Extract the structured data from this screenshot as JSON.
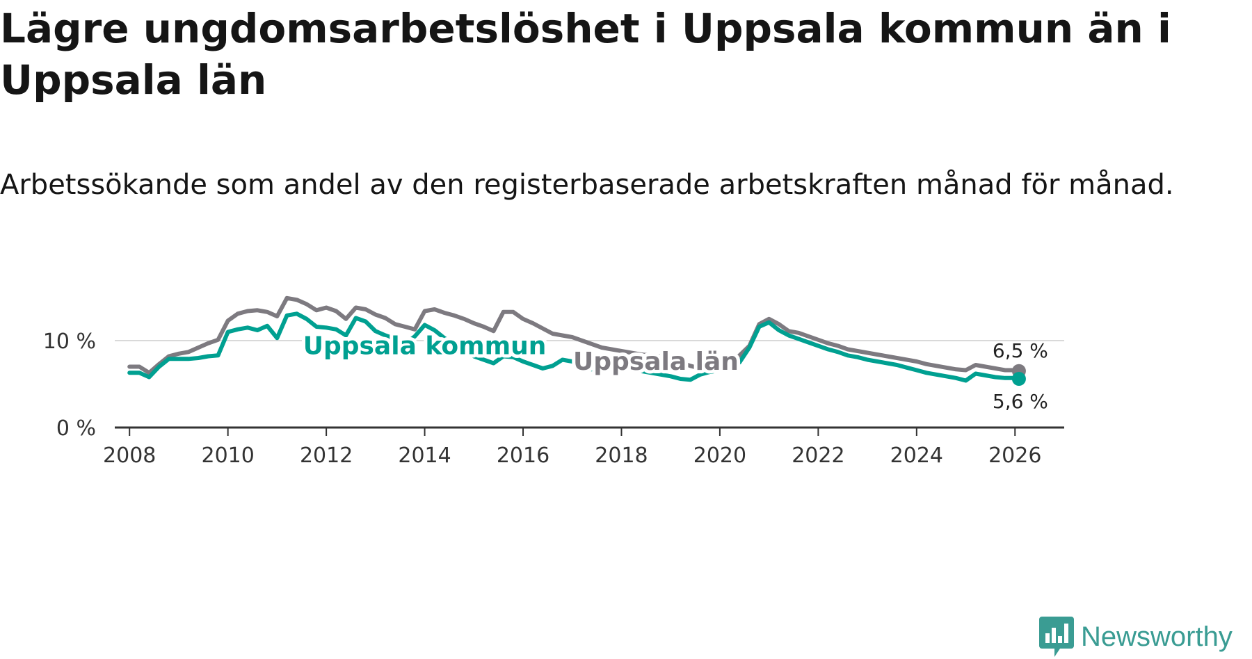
{
  "header": {
    "title": "Lägre ungdomsarbetslöshet i Uppsala kommun än i Uppsala län",
    "subtitle": "Arbetssökande som andel av den registerbaserade arbetskraften månad för månad."
  },
  "brand": {
    "name": "Newsworthy",
    "color": "#3a9c93"
  },
  "chart_data": {
    "type": "line",
    "unit": "%",
    "x_range": [
      2007.7,
      2027.0
    ],
    "ylim": [
      0,
      18
    ],
    "grid": true,
    "x_ticks": [
      2008,
      2010,
      2012,
      2014,
      2016,
      2018,
      2020,
      2022,
      2024,
      2026
    ],
    "x_tick_labels": [
      "2008",
      "2010",
      "2012",
      "2014",
      "2016",
      "2018",
      "2020",
      "2022",
      "2024",
      "2026"
    ],
    "y_ticks": [
      0,
      10
    ],
    "y_tick_labels": [
      "0 %",
      "10 %"
    ],
    "series": [
      {
        "name": "Uppsala län",
        "color": "#7d7a80",
        "end_label": "6,5 %",
        "points": [
          [
            2008.0,
            7.0
          ],
          [
            2008.2,
            7.0
          ],
          [
            2008.4,
            6.3
          ],
          [
            2008.6,
            7.3
          ],
          [
            2008.8,
            8.2
          ],
          [
            2009.0,
            8.5
          ],
          [
            2009.2,
            8.7
          ],
          [
            2009.4,
            9.2
          ],
          [
            2009.6,
            9.7
          ],
          [
            2009.8,
            10.1
          ],
          [
            2010.0,
            12.3
          ],
          [
            2010.2,
            13.1
          ],
          [
            2010.4,
            13.4
          ],
          [
            2010.6,
            13.5
          ],
          [
            2010.8,
            13.3
          ],
          [
            2011.0,
            12.8
          ],
          [
            2011.2,
            14.9
          ],
          [
            2011.4,
            14.7
          ],
          [
            2011.6,
            14.2
          ],
          [
            2011.8,
            13.5
          ],
          [
            2012.0,
            13.8
          ],
          [
            2012.2,
            13.4
          ],
          [
            2012.4,
            12.5
          ],
          [
            2012.6,
            13.8
          ],
          [
            2012.8,
            13.6
          ],
          [
            2013.0,
            13.0
          ],
          [
            2013.2,
            12.6
          ],
          [
            2013.4,
            11.9
          ],
          [
            2013.6,
            11.6
          ],
          [
            2013.8,
            11.3
          ],
          [
            2014.0,
            13.4
          ],
          [
            2014.2,
            13.6
          ],
          [
            2014.4,
            13.2
          ],
          [
            2014.6,
            12.9
          ],
          [
            2014.8,
            12.5
          ],
          [
            2015.0,
            12.0
          ],
          [
            2015.2,
            11.6
          ],
          [
            2015.4,
            11.1
          ],
          [
            2015.6,
            13.3
          ],
          [
            2015.8,
            13.3
          ],
          [
            2016.0,
            12.5
          ],
          [
            2016.2,
            12.0
          ],
          [
            2016.4,
            11.4
          ],
          [
            2016.6,
            10.8
          ],
          [
            2016.8,
            10.6
          ],
          [
            2017.0,
            10.4
          ],
          [
            2017.2,
            10.0
          ],
          [
            2017.4,
            9.6
          ],
          [
            2017.6,
            9.2
          ],
          [
            2017.8,
            9.0
          ],
          [
            2018.0,
            8.8
          ],
          [
            2018.2,
            8.6
          ],
          [
            2018.4,
            8.4
          ],
          [
            2018.6,
            8.3
          ],
          [
            2018.8,
            8.2
          ],
          [
            2019.0,
            7.9
          ],
          [
            2019.2,
            7.5
          ],
          [
            2019.4,
            7.1
          ],
          [
            2019.6,
            6.8
          ],
          [
            2019.8,
            6.6
          ],
          [
            2020.0,
            6.8
          ],
          [
            2020.2,
            7.4
          ],
          [
            2020.4,
            8.3
          ],
          [
            2020.6,
            9.4
          ],
          [
            2020.8,
            11.9
          ],
          [
            2021.0,
            12.5
          ],
          [
            2021.2,
            11.9
          ],
          [
            2021.4,
            11.1
          ],
          [
            2021.6,
            10.9
          ],
          [
            2021.8,
            10.5
          ],
          [
            2022.0,
            10.1
          ],
          [
            2022.2,
            9.7
          ],
          [
            2022.4,
            9.4
          ],
          [
            2022.6,
            9.0
          ],
          [
            2022.8,
            8.8
          ],
          [
            2023.0,
            8.6
          ],
          [
            2023.2,
            8.4
          ],
          [
            2023.4,
            8.2
          ],
          [
            2023.6,
            8.0
          ],
          [
            2023.8,
            7.8
          ],
          [
            2024.0,
            7.6
          ],
          [
            2024.2,
            7.3
          ],
          [
            2024.4,
            7.1
          ],
          [
            2024.6,
            6.9
          ],
          [
            2024.8,
            6.7
          ],
          [
            2025.0,
            6.6
          ],
          [
            2025.2,
            7.2
          ],
          [
            2025.4,
            7.0
          ],
          [
            2025.6,
            6.8
          ],
          [
            2025.8,
            6.6
          ],
          [
            2026.0,
            6.6
          ],
          [
            2026.08,
            6.5
          ]
        ]
      },
      {
        "name": "Uppsala kommun",
        "color": "#00a091",
        "end_label": "5,6 %",
        "points": [
          [
            2008.0,
            6.3
          ],
          [
            2008.2,
            6.3
          ],
          [
            2008.4,
            5.8
          ],
          [
            2008.6,
            7.0
          ],
          [
            2008.8,
            7.9
          ],
          [
            2009.0,
            7.9
          ],
          [
            2009.2,
            7.9
          ],
          [
            2009.4,
            8.0
          ],
          [
            2009.6,
            8.2
          ],
          [
            2009.8,
            8.3
          ],
          [
            2010.0,
            11.0
          ],
          [
            2010.2,
            11.3
          ],
          [
            2010.4,
            11.5
          ],
          [
            2010.6,
            11.2
          ],
          [
            2010.8,
            11.7
          ],
          [
            2011.0,
            10.3
          ],
          [
            2011.2,
            12.9
          ],
          [
            2011.4,
            13.1
          ],
          [
            2011.6,
            12.5
          ],
          [
            2011.8,
            11.6
          ],
          [
            2012.0,
            11.5
          ],
          [
            2012.2,
            11.3
          ],
          [
            2012.4,
            10.6
          ],
          [
            2012.6,
            12.6
          ],
          [
            2012.8,
            12.2
          ],
          [
            2013.0,
            11.1
          ],
          [
            2013.2,
            10.6
          ],
          [
            2013.4,
            10.2
          ],
          [
            2013.6,
            9.6
          ],
          [
            2013.8,
            10.5
          ],
          [
            2014.0,
            11.8
          ],
          [
            2014.2,
            11.2
          ],
          [
            2014.4,
            10.3
          ],
          [
            2014.6,
            9.6
          ],
          [
            2014.8,
            8.9
          ],
          [
            2015.0,
            8.2
          ],
          [
            2015.2,
            7.8
          ],
          [
            2015.4,
            7.4
          ],
          [
            2015.6,
            8.2
          ],
          [
            2015.8,
            8.1
          ],
          [
            2016.0,
            7.6
          ],
          [
            2016.2,
            7.2
          ],
          [
            2016.4,
            6.8
          ],
          [
            2016.6,
            7.1
          ],
          [
            2016.8,
            7.8
          ],
          [
            2017.0,
            7.6
          ],
          [
            2017.2,
            7.0
          ],
          [
            2017.4,
            6.7
          ],
          [
            2017.6,
            7.4
          ],
          [
            2017.8,
            7.6
          ],
          [
            2018.0,
            7.1
          ],
          [
            2018.2,
            6.7
          ],
          [
            2018.4,
            6.5
          ],
          [
            2018.6,
            6.3
          ],
          [
            2018.8,
            6.1
          ],
          [
            2019.0,
            5.9
          ],
          [
            2019.2,
            5.6
          ],
          [
            2019.4,
            5.5
          ],
          [
            2019.6,
            6.1
          ],
          [
            2019.8,
            6.4
          ],
          [
            2020.0,
            6.6
          ],
          [
            2020.2,
            6.8
          ],
          [
            2020.4,
            7.5
          ],
          [
            2020.6,
            9.2
          ],
          [
            2020.8,
            11.6
          ],
          [
            2021.0,
            12.1
          ],
          [
            2021.2,
            11.2
          ],
          [
            2021.4,
            10.6
          ],
          [
            2021.6,
            10.2
          ],
          [
            2021.8,
            9.8
          ],
          [
            2022.0,
            9.4
          ],
          [
            2022.2,
            9.0
          ],
          [
            2022.4,
            8.7
          ],
          [
            2022.6,
            8.3
          ],
          [
            2022.8,
            8.1
          ],
          [
            2023.0,
            7.8
          ],
          [
            2023.2,
            7.6
          ],
          [
            2023.4,
            7.4
          ],
          [
            2023.6,
            7.2
          ],
          [
            2023.8,
            6.9
          ],
          [
            2024.0,
            6.6
          ],
          [
            2024.2,
            6.3
          ],
          [
            2024.4,
            6.1
          ],
          [
            2024.6,
            5.9
          ],
          [
            2024.8,
            5.7
          ],
          [
            2025.0,
            5.4
          ],
          [
            2025.2,
            6.2
          ],
          [
            2025.4,
            6.0
          ],
          [
            2025.6,
            5.8
          ],
          [
            2025.8,
            5.7
          ],
          [
            2026.0,
            5.7
          ],
          [
            2026.08,
            5.6
          ]
        ]
      }
    ],
    "annotations": [
      {
        "text": "Uppsala kommun",
        "series": "Uppsala kommun",
        "x": 2014.0,
        "y": 9.4
      },
      {
        "text": "Uppsala län",
        "series": "Uppsala län",
        "x": 2018.7,
        "y": 7.6
      }
    ]
  }
}
